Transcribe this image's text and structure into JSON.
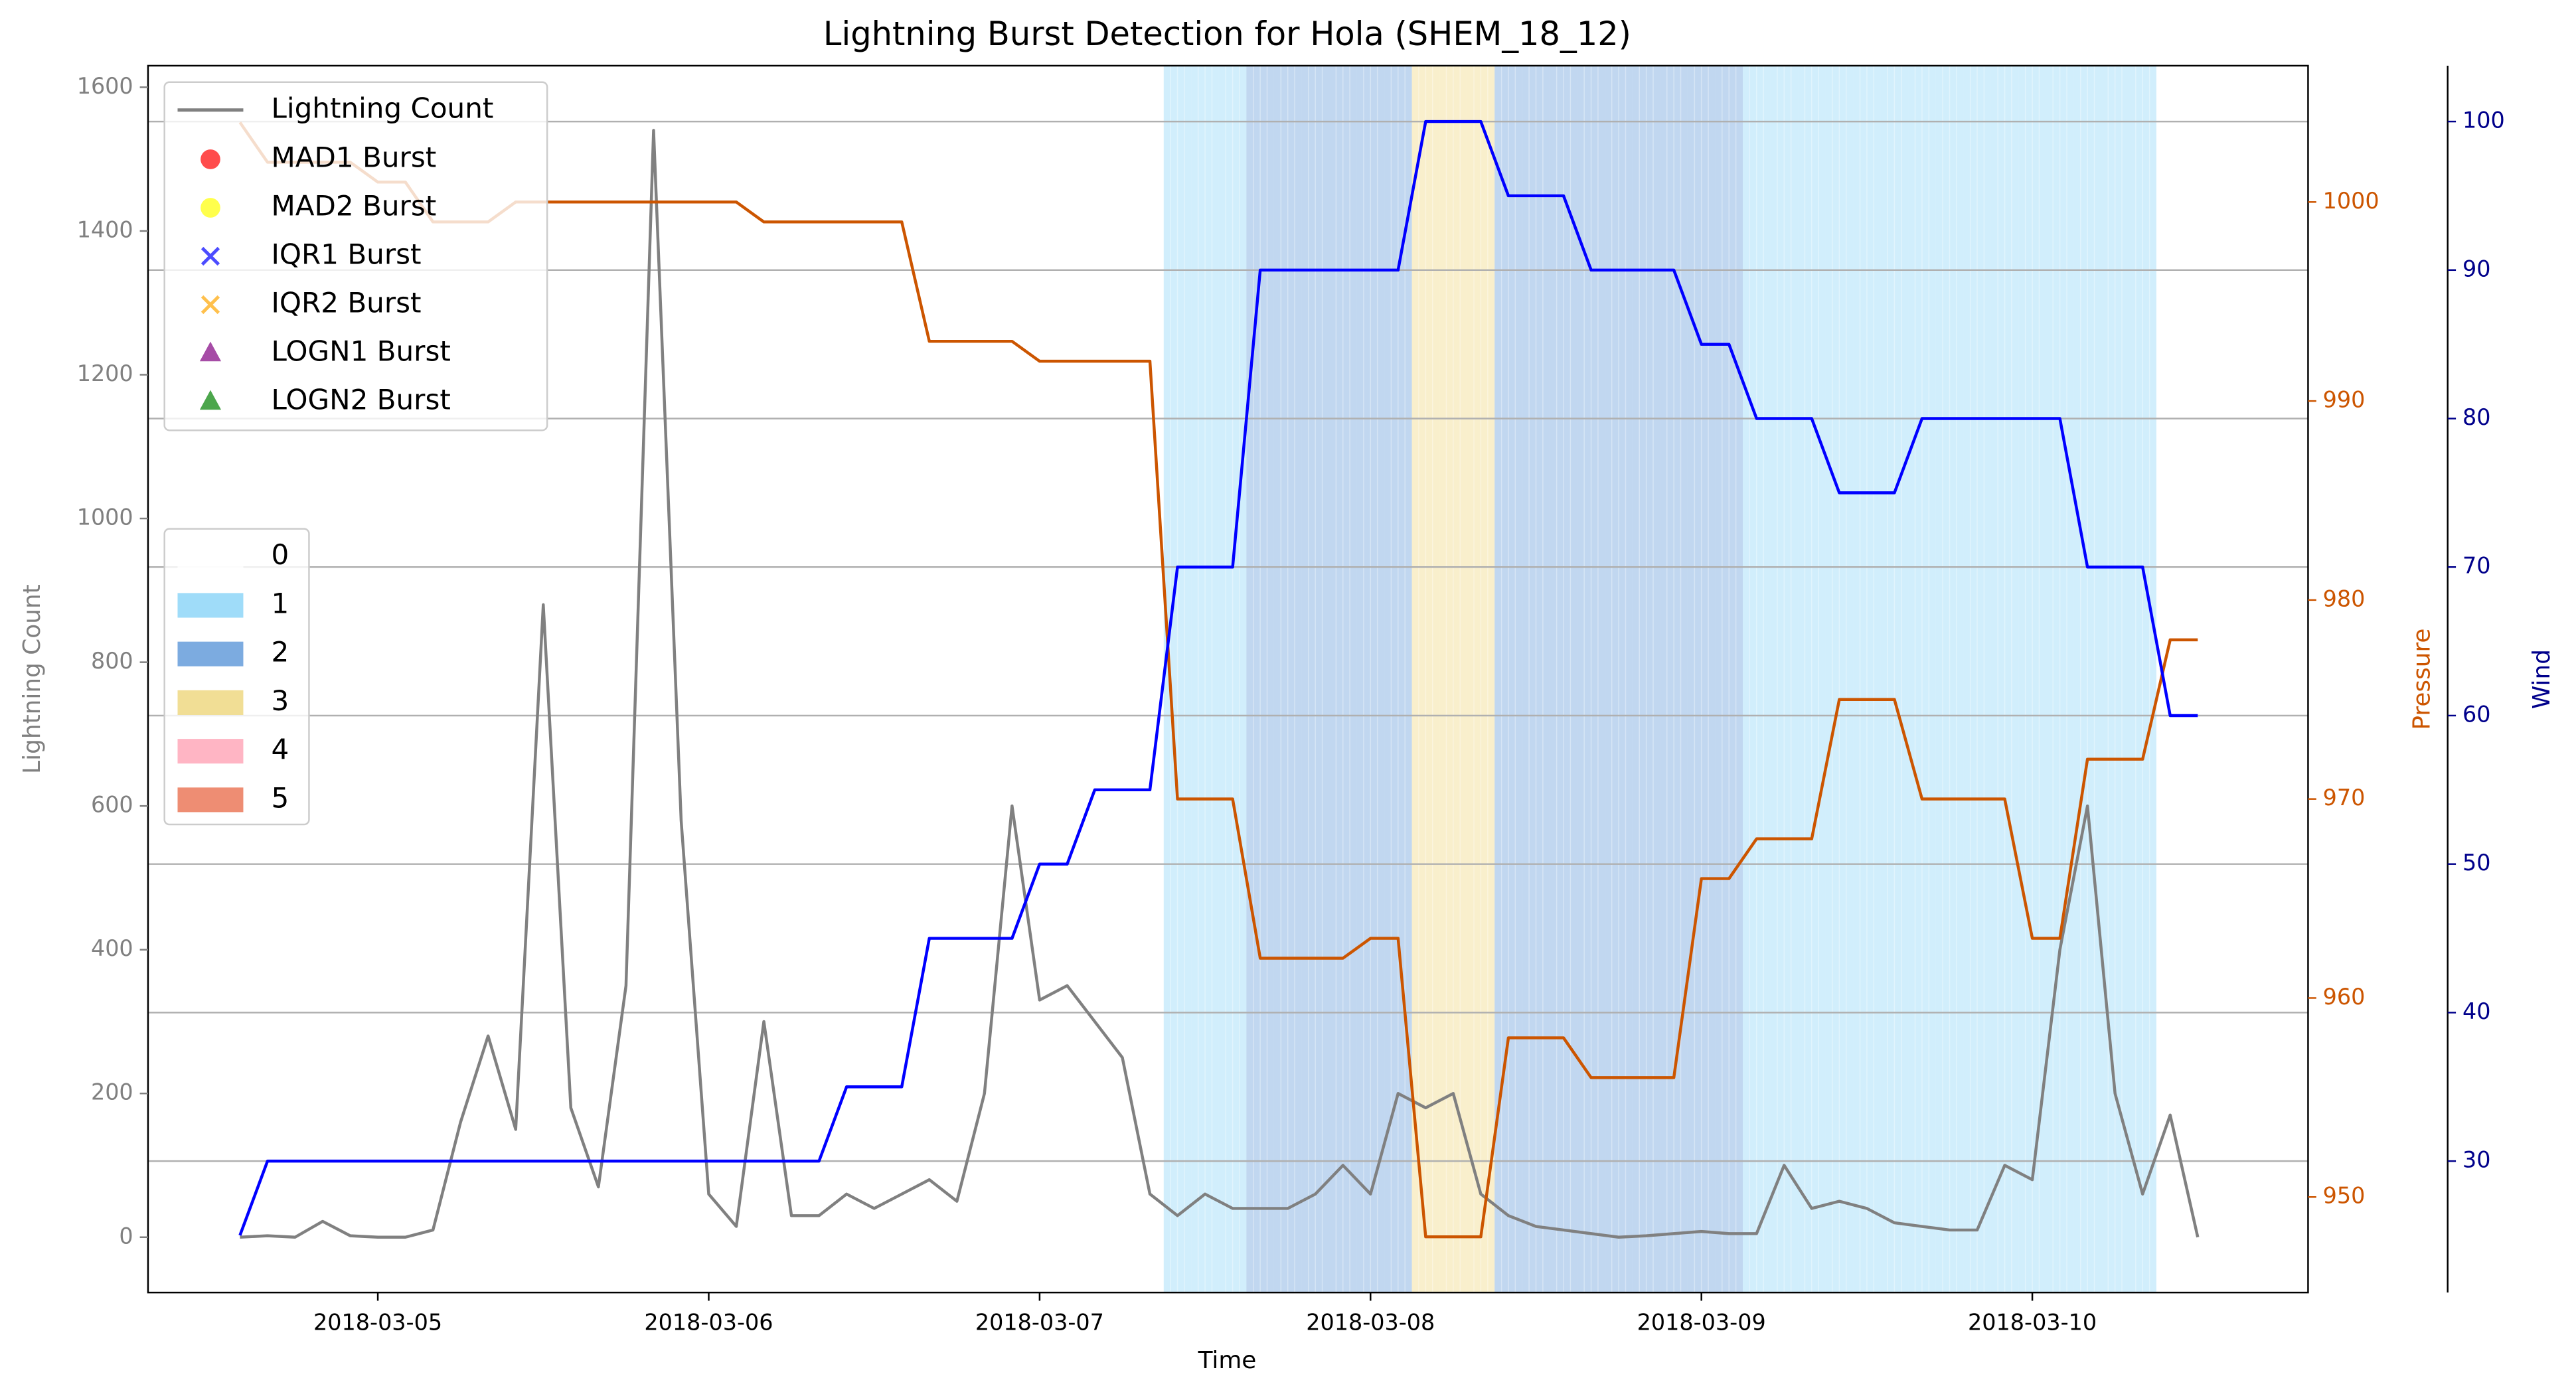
{
  "chart_data": {
    "type": "line",
    "title": "Lightning Burst Detection for Hola (SHEM_18_12)",
    "x": [
      "2018-03-04T14:00",
      "2018-03-04T16:00",
      "2018-03-04T18:00",
      "2018-03-04T20:00",
      "2018-03-04T22:00",
      "2018-03-05T00:00",
      "2018-03-05T02:00",
      "2018-03-05T04:00",
      "2018-03-05T06:00",
      "2018-03-05T08:00",
      "2018-03-05T10:00",
      "2018-03-05T12:00",
      "2018-03-05T14:00",
      "2018-03-05T16:00",
      "2018-03-05T18:00",
      "2018-03-05T20:00",
      "2018-03-05T22:00",
      "2018-03-06T00:00",
      "2018-03-06T02:00",
      "2018-03-06T04:00",
      "2018-03-06T06:00",
      "2018-03-06T08:00",
      "2018-03-06T10:00",
      "2018-03-06T12:00",
      "2018-03-06T14:00",
      "2018-03-06T16:00",
      "2018-03-06T18:00",
      "2018-03-06T20:00",
      "2018-03-06T22:00",
      "2018-03-07T00:00",
      "2018-03-07T02:00",
      "2018-03-07T04:00",
      "2018-03-07T06:00",
      "2018-03-07T08:00",
      "2018-03-07T10:00",
      "2018-03-07T12:00",
      "2018-03-07T14:00",
      "2018-03-07T16:00",
      "2018-03-07T18:00",
      "2018-03-07T20:00",
      "2018-03-07T22:00",
      "2018-03-08T00:00",
      "2018-03-08T02:00",
      "2018-03-08T04:00",
      "2018-03-08T06:00",
      "2018-03-08T08:00",
      "2018-03-08T10:00",
      "2018-03-08T12:00",
      "2018-03-08T14:00",
      "2018-03-08T16:00",
      "2018-03-08T18:00",
      "2018-03-08T20:00",
      "2018-03-08T22:00",
      "2018-03-09T00:00",
      "2018-03-09T02:00",
      "2018-03-09T04:00",
      "2018-03-09T06:00",
      "2018-03-09T08:00",
      "2018-03-09T10:00",
      "2018-03-09T12:00",
      "2018-03-09T14:00",
      "2018-03-09T16:00",
      "2018-03-09T18:00",
      "2018-03-09T20:00",
      "2018-03-09T22:00",
      "2018-03-10T00:00",
      "2018-03-10T02:00",
      "2018-03-10T04:00",
      "2018-03-10T06:00",
      "2018-03-10T08:00",
      "2018-03-10T10:00",
      "2018-03-10T12:00"
    ],
    "xlim": [
      "2018-03-04T07:20",
      "2018-03-10T20:00"
    ],
    "xticks": [
      "2018-03-05",
      "2018-03-06",
      "2018-03-07",
      "2018-03-08",
      "2018-03-09",
      "2018-03-10"
    ],
    "xlabel": "Time",
    "ylabel": "Lightning Count",
    "ylim": [
      -77,
      1630
    ],
    "yticks": [
      0,
      200,
      400,
      600,
      800,
      1000,
      1200,
      1400,
      1600
    ],
    "y2label": "Pressure",
    "y2lim": [
      945.2,
      1006.85
    ],
    "y2ticks": [
      950,
      960,
      970,
      980,
      990,
      1000
    ],
    "y3label": "Wind",
    "y3lim": [
      21.15,
      103.76
    ],
    "y3ticks": [
      30,
      40,
      50,
      60,
      70,
      80,
      90,
      100
    ],
    "axis_colors": {
      "y": "#808080",
      "y2": "#cc5500",
      "y3": "#00008b"
    },
    "grid_axis": "y3",
    "legend": "upper left",
    "series": [
      {
        "name": "Lightning Count",
        "color": "#808080",
        "axis": "y",
        "values": [
          0,
          2,
          0,
          22,
          2,
          0,
          0,
          10,
          160,
          280,
          150,
          880,
          180,
          70,
          350,
          1540,
          580,
          60,
          15,
          300,
          30,
          30,
          60,
          40,
          60,
          80,
          50,
          200,
          600,
          330,
          350,
          300,
          250,
          60,
          30,
          60,
          40,
          40,
          40,
          60,
          100,
          60,
          200,
          180,
          200,
          60,
          30,
          15,
          10,
          5,
          0,
          2,
          5,
          8,
          5,
          5,
          100,
          40,
          50,
          40,
          20,
          15,
          10,
          10,
          100,
          80,
          400,
          600,
          200,
          60,
          170,
          0
        ]
      },
      {
        "color": "#cc5500",
        "axis": "y2",
        "values": [
          1004,
          1002,
          1002,
          1002,
          1002,
          1001,
          1001,
          999,
          999,
          999,
          1000,
          1000,
          1000,
          1000,
          1000,
          1000,
          1000,
          1000,
          1000,
          999,
          999,
          999,
          999,
          999,
          999,
          993,
          993,
          993,
          993,
          992,
          992,
          992,
          992,
          992,
          970,
          970,
          970,
          962,
          962,
          962,
          962,
          963,
          963,
          948,
          948,
          948,
          958,
          958,
          958,
          956,
          956,
          956,
          956,
          966,
          966,
          968,
          968,
          968,
          975,
          975,
          975,
          970,
          970,
          970,
          970,
          963,
          963,
          972,
          972,
          972,
          978,
          978
        ]
      },
      {
        "color": "#0000ff",
        "axis": "y3",
        "values": [
          25,
          30,
          30,
          30,
          30,
          30,
          30,
          30,
          30,
          30,
          30,
          30,
          30,
          30,
          30,
          30,
          30,
          30,
          30,
          30,
          30,
          30,
          35,
          35,
          35,
          45,
          45,
          45,
          45,
          50,
          50,
          55,
          55,
          55,
          70,
          70,
          70,
          90,
          90,
          90,
          90,
          90,
          90,
          100,
          100,
          100,
          95,
          95,
          95,
          90,
          90,
          90,
          90,
          85,
          85,
          80,
          80,
          80,
          75,
          75,
          75,
          80,
          80,
          80,
          80,
          80,
          80,
          70,
          70,
          70,
          60,
          60
        ]
      }
    ],
    "burst_markers": [
      {
        "name": "MAD1 Burst",
        "color": "#ff0000",
        "marker": "circle"
      },
      {
        "name": "MAD2 Burst",
        "color": "#ffff00",
        "marker": "circle"
      },
      {
        "name": "IQR1 Burst",
        "color": "#0000ff",
        "marker": "x"
      },
      {
        "name": "IQR2 Burst",
        "color": "#ffa500",
        "marker": "x"
      },
      {
        "name": "LOGN1 Burst",
        "color": "#800080",
        "marker": "triangle"
      },
      {
        "name": "LOGN2 Burst",
        "color": "#008000",
        "marker": "triangle"
      }
    ],
    "intensity": {
      "legend_position": "center left",
      "categories": [
        {
          "label": "0",
          "color": "#ffffff"
        },
        {
          "label": "1",
          "color": "#87d3f8"
        },
        {
          "label": "2",
          "color": "#5b96d8"
        },
        {
          "label": "3",
          "color": "#eed67a"
        },
        {
          "label": "4",
          "color": "#ffa3b5"
        },
        {
          "label": "5",
          "color": "#ea7050"
        }
      ],
      "values": [
        null,
        null,
        null,
        null,
        null,
        null,
        null,
        null,
        null,
        null,
        null,
        null,
        null,
        null,
        null,
        null,
        null,
        null,
        null,
        null,
        null,
        null,
        null,
        null,
        null,
        null,
        null,
        null,
        null,
        null,
        null,
        null,
        null,
        null,
        1,
        1,
        1,
        2,
        2,
        2,
        2,
        2,
        2,
        3,
        3,
        3,
        2,
        2,
        2,
        2,
        2,
        2,
        2,
        2,
        2,
        1,
        1,
        1,
        1,
        1,
        1,
        1,
        1,
        1,
        1,
        1,
        1,
        1,
        1,
        1,
        null,
        null
      ]
    }
  }
}
